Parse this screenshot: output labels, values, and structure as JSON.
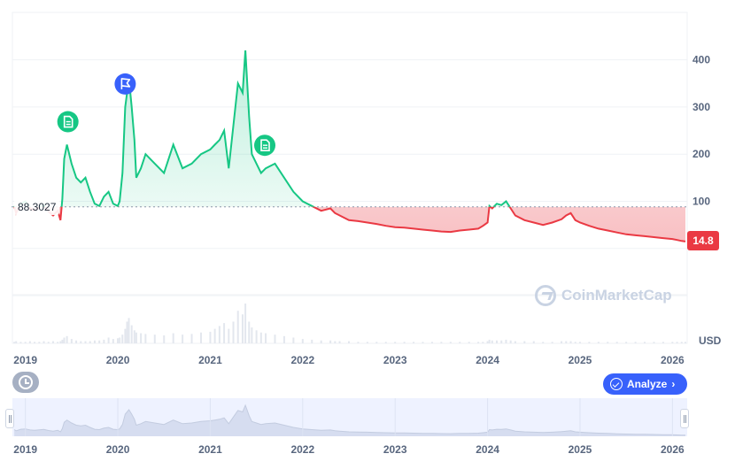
{
  "chart_data": {
    "type": "line",
    "x_unit": "year",
    "unit": "USD",
    "reference_value": "88.3027",
    "last_value": "14.8",
    "y_ticks": [
      100,
      200,
      300,
      400
    ],
    "ylim": [
      -200,
      500
    ],
    "x_ticks": [
      "2019",
      "2020",
      "2021",
      "2022",
      "2023",
      "2024",
      "2025",
      "2026"
    ],
    "xlim": [
      2018.85,
      2026.15
    ],
    "grid": true,
    "x": [
      2018.88,
      2018.9,
      2018.95,
      2019.0,
      2019.05,
      2019.1,
      2019.15,
      2019.2,
      2019.25,
      2019.3,
      2019.35,
      2019.38,
      2019.4,
      2019.42,
      2019.45,
      2019.5,
      2019.55,
      2019.6,
      2019.65,
      2019.7,
      2019.75,
      2019.8,
      2019.85,
      2019.9,
      2019.95,
      2020.0,
      2020.02,
      2020.05,
      2020.08,
      2020.1,
      2020.12,
      2020.15,
      2020.18,
      2020.2,
      2020.25,
      2020.3,
      2020.4,
      2020.5,
      2020.6,
      2020.7,
      2020.8,
      2020.9,
      2021.0,
      2021.05,
      2021.1,
      2021.15,
      2021.2,
      2021.25,
      2021.3,
      2021.35,
      2021.38,
      2021.42,
      2021.45,
      2021.5,
      2021.55,
      2021.6,
      2021.7,
      2021.8,
      2021.9,
      2022.0,
      2022.1,
      2022.2,
      2022.3,
      2022.35,
      2022.4,
      2022.5,
      2022.6,
      2022.7,
      2022.8,
      2022.9,
      2023.0,
      2023.1,
      2023.2,
      2023.3,
      2023.4,
      2023.5,
      2023.6,
      2023.7,
      2023.8,
      2023.9,
      2023.95,
      2024.0,
      2024.02,
      2024.05,
      2024.1,
      2024.15,
      2024.2,
      2024.25,
      2024.3,
      2024.4,
      2024.5,
      2024.6,
      2024.7,
      2024.8,
      2024.85,
      2024.9,
      2024.95,
      2025.0,
      2025.1,
      2025.2,
      2025.3,
      2025.4,
      2025.5,
      2025.6,
      2025.7,
      2025.8,
      2025.9,
      2026.0,
      2026.05,
      2026.1,
      2026.14
    ],
    "y": [
      90,
      75,
      95,
      100,
      85,
      80,
      88,
      92,
      78,
      70,
      80,
      60,
      105,
      190,
      220,
      180,
      150,
      140,
      150,
      120,
      95,
      90,
      110,
      120,
      95,
      90,
      100,
      160,
      300,
      330,
      360,
      300,
      230,
      150,
      170,
      200,
      180,
      160,
      220,
      170,
      180,
      200,
      210,
      220,
      230,
      250,
      170,
      260,
      350,
      330,
      420,
      280,
      200,
      180,
      160,
      170,
      180,
      150,
      120,
      100,
      90,
      80,
      85,
      75,
      70,
      60,
      58,
      55,
      52,
      48,
      45,
      44,
      42,
      40,
      38,
      36,
      35,
      38,
      40,
      42,
      48,
      55,
      90,
      85,
      95,
      92,
      100,
      85,
      70,
      60,
      55,
      50,
      55,
      62,
      70,
      75,
      60,
      55,
      48,
      42,
      38,
      34,
      30,
      28,
      26,
      24,
      22,
      20,
      18,
      16,
      14.8
    ],
    "volume": [
      2,
      3,
      2,
      2,
      3,
      2,
      2,
      3,
      2,
      3,
      2,
      3,
      5,
      8,
      10,
      6,
      4,
      3,
      3,
      3,
      4,
      4,
      5,
      8,
      6,
      7,
      8,
      12,
      20,
      30,
      35,
      25,
      18,
      15,
      14,
      13,
      12,
      11,
      14,
      12,
      13,
      15,
      16,
      20,
      24,
      28,
      20,
      30,
      45,
      40,
      55,
      30,
      22,
      18,
      15,
      14,
      12,
      10,
      8,
      6,
      5,
      4,
      4,
      3,
      3,
      3,
      2,
      2,
      2,
      2,
      2,
      2,
      2,
      2,
      2,
      2,
      2,
      2,
      2,
      2,
      2,
      3,
      5,
      4,
      4,
      4,
      5,
      4,
      3,
      3,
      3,
      2,
      2,
      3,
      3,
      3,
      2,
      2,
      2,
      2,
      2,
      2,
      2,
      2,
      2,
      2,
      2,
      2,
      2,
      2,
      2
    ],
    "annotations": [
      {
        "icon": "document-icon",
        "x": 2019.46
      },
      {
        "icon": "flag-icon",
        "x": 2020.08
      },
      {
        "icon": "document-icon",
        "x": 2021.59
      }
    ]
  },
  "watermark": "CoinMarketCap",
  "buttons": {
    "analyze": "Analyze"
  },
  "colors": {
    "up": "#16c784",
    "down": "#ea3943",
    "accent": "#3861fb"
  }
}
